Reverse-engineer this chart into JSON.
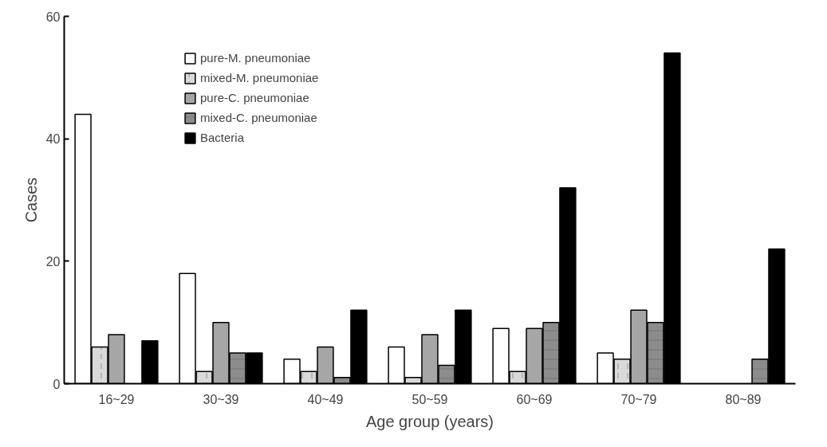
{
  "chart_data": {
    "type": "bar",
    "xlabel": "Age group (years)",
    "ylabel": "Cases",
    "categories": [
      "16~29",
      "30~39",
      "40~49",
      "50~59",
      "60~69",
      "70~79",
      "80~89"
    ],
    "series": [
      {
        "name": "pure-M. pneumoniae",
        "color": "#ffffff",
        "values": [
          44,
          18,
          4,
          6,
          9,
          5,
          null
        ]
      },
      {
        "name": "mixed-M. pneumoniae",
        "color": "#d9d9d9",
        "values": [
          6,
          2,
          2,
          1,
          2,
          4,
          null
        ]
      },
      {
        "name": "pure-C. pneumoniae",
        "color": "#a6a6a6",
        "values": [
          8,
          10,
          6,
          8,
          9,
          12,
          null
        ]
      },
      {
        "name": "mixed-C. pneumoniae",
        "color": "#8c8c8c",
        "values": [
          null,
          5,
          1,
          3,
          10,
          10,
          4
        ]
      },
      {
        "name": "Bacteria",
        "color": "#000000",
        "values": [
          7,
          5,
          12,
          12,
          32,
          54,
          22
        ]
      }
    ],
    "ylim": [
      0,
      60
    ],
    "yticks": [
      0,
      20,
      40,
      60
    ],
    "grid": false,
    "legend": "top"
  }
}
